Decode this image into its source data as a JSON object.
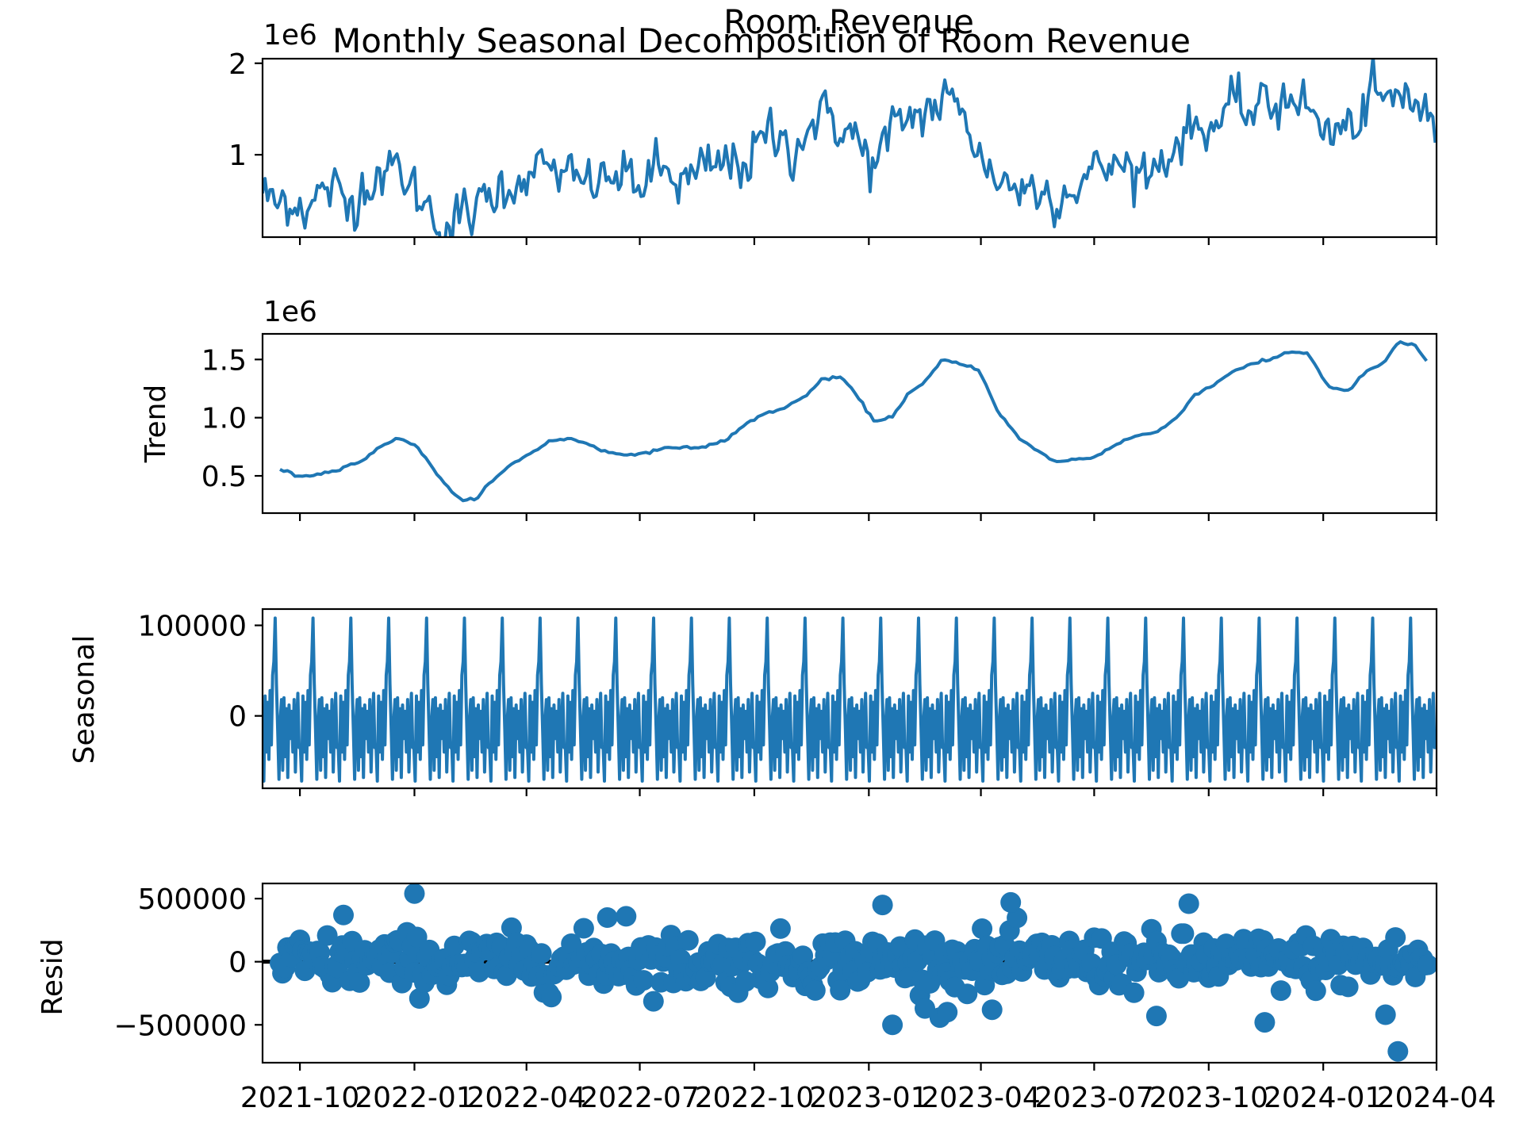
{
  "figure": {
    "suptitle": "Monthly Seasonal Decomposition of Room Revenue",
    "top_title": "Room Revenue",
    "line_color": "#1f77b4"
  },
  "chart_data": [
    {
      "name": "observed",
      "type": "line",
      "title": "Room Revenue",
      "ylabel": "",
      "offset_text": "1e6",
      "xlim": [
        "2021-09-01",
        "2024-04-01"
      ],
      "ylim": [
        0.1,
        2.05
      ],
      "ytick_values": [
        1,
        2
      ],
      "ytick_labels": [
        "1",
        "2"
      ],
      "grid": false,
      "legend": "none",
      "keypoints": [
        [
          "2021-09-01",
          0.62
        ],
        [
          "2021-09-10",
          0.42
        ],
        [
          "2021-09-25",
          0.55
        ],
        [
          "2021-10-10",
          0.45
        ],
        [
          "2021-10-25",
          0.65
        ],
        [
          "2021-11-08",
          0.4
        ],
        [
          "2021-11-20",
          0.7
        ],
        [
          "2021-12-05",
          0.85
        ],
        [
          "2021-12-20",
          0.8
        ],
        [
          "2022-01-03",
          0.55
        ],
        [
          "2022-01-15",
          0.4
        ],
        [
          "2022-01-25",
          0.2
        ],
        [
          "2022-02-10",
          0.3
        ],
        [
          "2022-02-25",
          0.45
        ],
        [
          "2022-03-15",
          0.7
        ],
        [
          "2022-04-01",
          0.8
        ],
        [
          "2022-04-20",
          0.85
        ],
        [
          "2022-05-10",
          0.65
        ],
        [
          "2022-05-25",
          0.7
        ],
        [
          "2022-06-15",
          0.75
        ],
        [
          "2022-07-01",
          0.7
        ],
        [
          "2022-07-20",
          0.8
        ],
        [
          "2022-08-10",
          0.7
        ],
        [
          "2022-08-25",
          0.8
        ],
        [
          "2022-09-10",
          0.9
        ],
        [
          "2022-09-25",
          0.95
        ],
        [
          "2022-10-15",
          1.2
        ],
        [
          "2022-11-01",
          1.1
        ],
        [
          "2022-11-15",
          1.35
        ],
        [
          "2022-12-05",
          1.4
        ],
        [
          "2022-12-20",
          1.2
        ],
        [
          "2023-01-01",
          0.9
        ],
        [
          "2023-01-15",
          1.1
        ],
        [
          "2023-02-01",
          1.4
        ],
        [
          "2023-02-15",
          1.5
        ],
        [
          "2023-03-01",
          1.55
        ],
        [
          "2023-03-20",
          1.5
        ],
        [
          "2023-04-01",
          0.9
        ],
        [
          "2023-04-15",
          0.75
        ],
        [
          "2023-05-01",
          0.65
        ],
        [
          "2023-05-20",
          0.6
        ],
        [
          "2023-06-10",
          0.65
        ],
        [
          "2023-06-25",
          0.75
        ],
        [
          "2023-07-15",
          0.9
        ],
        [
          "2023-08-01",
          0.85
        ],
        [
          "2023-08-15",
          0.8
        ],
        [
          "2023-09-01",
          1.1
        ],
        [
          "2023-09-20",
          1.3
        ],
        [
          "2023-10-10",
          1.4
        ],
        [
          "2023-10-25",
          1.45
        ],
        [
          "2023-11-10",
          1.5
        ],
        [
          "2023-11-25",
          1.55
        ],
        [
          "2023-12-10",
          1.75
        ],
        [
          "2023-12-25",
          1.35
        ],
        [
          "2024-01-10",
          1.2
        ],
        [
          "2024-01-25",
          1.3
        ],
        [
          "2024-02-10",
          1.6
        ],
        [
          "2024-02-25",
          1.55
        ],
        [
          "2024-03-10",
          1.7
        ],
        [
          "2024-03-20",
          1.5
        ],
        [
          "2024-03-31",
          1.2
        ]
      ]
    },
    {
      "name": "trend",
      "type": "line",
      "title": "",
      "ylabel": "Trend",
      "offset_text": "1e6",
      "xlim": [
        "2021-09-01",
        "2024-04-01"
      ],
      "ylim": [
        0.18,
        1.72
      ],
      "ytick_values": [
        0.5,
        1.0,
        1.5
      ],
      "ytick_labels": [
        "0.5",
        "1.0",
        "1.5"
      ],
      "grid": false,
      "legend": "none",
      "keypoints": [
        [
          "2021-09-15",
          0.56
        ],
        [
          "2021-09-28",
          0.5
        ],
        [
          "2021-10-15",
          0.51
        ],
        [
          "2021-11-01",
          0.56
        ],
        [
          "2021-11-20",
          0.63
        ],
        [
          "2021-12-05",
          0.75
        ],
        [
          "2021-12-18",
          0.83
        ],
        [
          "2022-01-01",
          0.77
        ],
        [
          "2022-01-15",
          0.58
        ],
        [
          "2022-01-28",
          0.4
        ],
        [
          "2022-02-08",
          0.28
        ],
        [
          "2022-02-18",
          0.3
        ],
        [
          "2022-03-01",
          0.42
        ],
        [
          "2022-03-20",
          0.6
        ],
        [
          "2022-04-05",
          0.7
        ],
        [
          "2022-04-20",
          0.8
        ],
        [
          "2022-05-05",
          0.82
        ],
        [
          "2022-05-20",
          0.78
        ],
        [
          "2022-06-05",
          0.7
        ],
        [
          "2022-06-20",
          0.68
        ],
        [
          "2022-07-10",
          0.71
        ],
        [
          "2022-08-01",
          0.75
        ],
        [
          "2022-08-20",
          0.74
        ],
        [
          "2022-09-10",
          0.82
        ],
        [
          "2022-09-25",
          0.95
        ],
        [
          "2022-10-10",
          1.04
        ],
        [
          "2022-10-25",
          1.08
        ],
        [
          "2022-11-10",
          1.18
        ],
        [
          "2022-11-25",
          1.33
        ],
        [
          "2022-12-10",
          1.35
        ],
        [
          "2022-12-25",
          1.15
        ],
        [
          "2023-01-05",
          0.97
        ],
        [
          "2023-01-20",
          1.01
        ],
        [
          "2023-02-01",
          1.2
        ],
        [
          "2023-02-15",
          1.3
        ],
        [
          "2023-03-01",
          1.5
        ],
        [
          "2023-03-15",
          1.46
        ],
        [
          "2023-03-30",
          1.42
        ],
        [
          "2023-04-15",
          1.05
        ],
        [
          "2023-05-01",
          0.83
        ],
        [
          "2023-05-15",
          0.72
        ],
        [
          "2023-06-01",
          0.62
        ],
        [
          "2023-06-15",
          0.64
        ],
        [
          "2023-07-01",
          0.66
        ],
        [
          "2023-07-20",
          0.78
        ],
        [
          "2023-08-05",
          0.85
        ],
        [
          "2023-08-20",
          0.87
        ],
        [
          "2023-09-05",
          1.0
        ],
        [
          "2023-09-20",
          1.2
        ],
        [
          "2023-10-05",
          1.28
        ],
        [
          "2023-10-20",
          1.4
        ],
        [
          "2023-11-05",
          1.46
        ],
        [
          "2023-11-20",
          1.5
        ],
        [
          "2023-12-05",
          1.57
        ],
        [
          "2023-12-20",
          1.55
        ],
        [
          "2024-01-05",
          1.27
        ],
        [
          "2024-01-20",
          1.22
        ],
        [
          "2024-02-05",
          1.4
        ],
        [
          "2024-02-20",
          1.48
        ],
        [
          "2024-03-01",
          1.65
        ],
        [
          "2024-03-15",
          1.62
        ],
        [
          "2024-03-25",
          1.47
        ]
      ]
    },
    {
      "name": "seasonal",
      "type": "line",
      "title": "",
      "ylabel": "Seasonal",
      "offset_text": "",
      "xlim": [
        "2021-09-01",
        "2024-04-01"
      ],
      "ylim": [
        -80000,
        118000
      ],
      "ytick_values": [
        0,
        100000
      ],
      "ytick_labels": [
        "0",
        "100000"
      ],
      "grid": false,
      "legend": "none",
      "period_days": 30.4,
      "cycle": [
        -35000,
        -72000,
        22000,
        -40000,
        15000,
        -48000,
        28000,
        -32000,
        45000,
        60000,
        108000,
        35000,
        -15000,
        -70000,
        -5000,
        18000,
        -60000,
        20000,
        -45000,
        8000,
        -68000,
        12000,
        -25000,
        5000,
        -40000,
        18000,
        -62000,
        -10000,
        25000,
        -35000
      ]
    },
    {
      "name": "resid",
      "type": "scatter",
      "title": "",
      "ylabel": "Resid",
      "offset_text": "",
      "xlim": [
        "2021-09-01",
        "2024-04-01"
      ],
      "ylim": [
        -800000,
        620000
      ],
      "ytick_values": [
        -500000,
        0,
        500000
      ],
      "ytick_labels": [
        "−500000",
        "0",
        "500000"
      ],
      "grid": false,
      "legend": "none",
      "highlighted_points": [
        [
          "2022-01-01",
          540000
        ],
        [
          "2021-11-05",
          370000
        ],
        [
          "2022-06-20",
          360000
        ],
        [
          "2022-06-05",
          350000
        ],
        [
          "2023-01-12",
          450000
        ],
        [
          "2023-04-25",
          470000
        ],
        [
          "2023-09-15",
          460000
        ],
        [
          "2024-03-01",
          -710000
        ],
        [
          "2023-11-15",
          -480000
        ],
        [
          "2023-01-20",
          -500000
        ],
        [
          "2023-08-20",
          -430000
        ],
        [
          "2024-02-20",
          -420000
        ],
        [
          "2023-02-15",
          -370000
        ],
        [
          "2023-04-10",
          -380000
        ],
        [
          "2023-03-05",
          -400000
        ]
      ]
    }
  ],
  "x_axis": {
    "tick_values": [
      "2021-10-01",
      "2022-01-01",
      "2022-04-01",
      "2022-07-01",
      "2022-10-01",
      "2023-01-01",
      "2023-04-01",
      "2023-07-01",
      "2023-10-01",
      "2024-01-01",
      "2024-04-01"
    ],
    "tick_labels": [
      "2021-10",
      "2022-01",
      "2022-04",
      "2022-07",
      "2022-10",
      "2023-01",
      "2023-04",
      "2023-07",
      "2023-10",
      "2024-01",
      "2024-04"
    ]
  }
}
